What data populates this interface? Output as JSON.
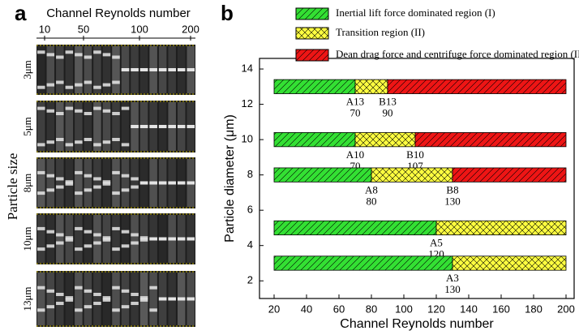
{
  "panel_a": {
    "label": "a",
    "title": "Channel Reynolds number",
    "ticks": [
      "10",
      "50",
      "100",
      "200"
    ],
    "ylabel": "Particle size",
    "rows": [
      "3μm",
      "5μm",
      "8μm",
      "10μm",
      "13μm"
    ]
  },
  "chart_data": {
    "type": "range-bar",
    "label": "b",
    "xlabel": "Channel Reynolds number",
    "ylabel": "Particle diameter (μm)",
    "xlim": [
      11,
      205
    ],
    "xticks": [
      20,
      40,
      60,
      80,
      100,
      120,
      140,
      160,
      180,
      200
    ],
    "ylim": [
      1,
      14.6
    ],
    "yticks": [
      2,
      4,
      6,
      8,
      10,
      12,
      14
    ],
    "series": [
      {
        "name": "Inertial lift force dominated region (I)",
        "color": "#33e033",
        "hatch": "diag"
      },
      {
        "name": "Transition region (II)",
        "color": "#ffff40",
        "hatch": "cross"
      },
      {
        "name": "Dean drag force and centrifuge force dominated region (III)",
        "color": "#ee1515",
        "hatch": "diag"
      }
    ],
    "bars": [
      {
        "y": 13,
        "start": 20,
        "end": 200,
        "boundaries": [
          {
            "name": "A13",
            "value": 70
          },
          {
            "name": "B13",
            "value": 90
          }
        ]
      },
      {
        "y": 10,
        "start": 20,
        "end": 200,
        "boundaries": [
          {
            "name": "A10",
            "value": 70
          },
          {
            "name": "B10",
            "value": 107
          }
        ]
      },
      {
        "y": 8,
        "start": 20,
        "end": 200,
        "boundaries": [
          {
            "name": "A8",
            "value": 80
          },
          {
            "name": "B8",
            "value": 130
          }
        ]
      },
      {
        "y": 5,
        "start": 20,
        "end": 200,
        "boundaries": [
          {
            "name": "A5",
            "value": 120
          }
        ]
      },
      {
        "y": 3,
        "start": 20,
        "end": 200,
        "boundaries": [
          {
            "name": "A3",
            "value": 130
          }
        ]
      }
    ]
  }
}
